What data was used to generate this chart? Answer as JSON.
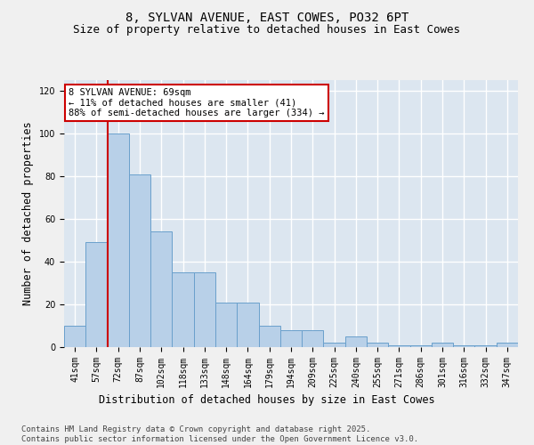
{
  "title_line1": "8, SYLVAN AVENUE, EAST COWES, PO32 6PT",
  "title_line2": "Size of property relative to detached houses in East Cowes",
  "xlabel": "Distribution of detached houses by size in East Cowes",
  "ylabel": "Number of detached properties",
  "categories": [
    "41sqm",
    "57sqm",
    "72sqm",
    "87sqm",
    "102sqm",
    "118sqm",
    "133sqm",
    "148sqm",
    "164sqm",
    "179sqm",
    "194sqm",
    "209sqm",
    "225sqm",
    "240sqm",
    "255sqm",
    "271sqm",
    "286sqm",
    "301sqm",
    "316sqm",
    "332sqm",
    "347sqm"
  ],
  "values": [
    10,
    49,
    100,
    81,
    54,
    35,
    35,
    21,
    21,
    10,
    8,
    8,
    2,
    5,
    2,
    1,
    1,
    2,
    1,
    1,
    2
  ],
  "bar_color": "#b8d0e8",
  "bar_edge_color": "#6aa0cc",
  "vline_x_index": 1.5,
  "vline_color": "#cc0000",
  "annotation_text": "8 SYLVAN AVENUE: 69sqm\n← 11% of detached houses are smaller (41)\n88% of semi-detached houses are larger (334) →",
  "annotation_box_color": "#cc0000",
  "ylim": [
    0,
    125
  ],
  "yticks": [
    0,
    20,
    40,
    60,
    80,
    100,
    120
  ],
  "background_color": "#dce6f0",
  "fig_background": "#f0f0f0",
  "footer_text": "Contains HM Land Registry data © Crown copyright and database right 2025.\nContains public sector information licensed under the Open Government Licence v3.0.",
  "grid_color": "#ffffff",
  "title_fontsize": 10,
  "subtitle_fontsize": 9,
  "tick_fontsize": 7,
  "label_fontsize": 8.5,
  "footer_fontsize": 6.5
}
